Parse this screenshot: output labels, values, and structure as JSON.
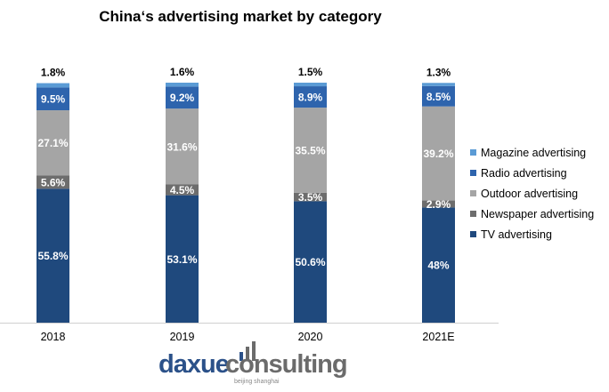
{
  "chart_data": {
    "type": "bar",
    "stacked": true,
    "title": "China‘s advertising market by category",
    "categories": [
      "2018",
      "2019",
      "2020",
      "2021E"
    ],
    "series": [
      {
        "name": "TV advertising",
        "color": "#1f497d",
        "values": [
          55.8,
          53.1,
          50.6,
          48
        ],
        "labels": [
          "55.8%",
          "53.1%",
          "50.6%",
          "48%"
        ]
      },
      {
        "name": "Newspaper advertising",
        "color": "#6d6d6d",
        "values": [
          5.6,
          4.5,
          3.5,
          2.9
        ],
        "labels": [
          "5.6%",
          "4.5%",
          "3.5%",
          "2.9%"
        ]
      },
      {
        "name": "Outdoor advertising",
        "color": "#a5a5a5",
        "values": [
          27.1,
          31.6,
          35.5,
          39.2
        ],
        "labels": [
          "27.1%",
          "31.6%",
          "35.5%",
          "39.2%"
        ]
      },
      {
        "name": "Radio advertising",
        "color": "#2e64ad",
        "values": [
          9.5,
          9.2,
          8.9,
          8.5
        ],
        "labels": [
          "9.5%",
          "9.2%",
          "8.9%",
          "8.5%"
        ]
      },
      {
        "name": "Magazine advertising",
        "color": "#5b9bd5",
        "values": [
          1.8,
          1.6,
          1.5,
          1.3
        ],
        "labels": [
          "1.8%",
          "1.6%",
          "1.5%",
          "1.3%"
        ]
      }
    ],
    "ylim": [
      0,
      100
    ],
    "grid": false,
    "legend_placement": "right"
  },
  "logo": {
    "brand_a": "daxue",
    "brand_b": "consulting",
    "sub": "beijing shanghai",
    "color_a": "#2b5189",
    "color_b": "#6b6b6b"
  }
}
